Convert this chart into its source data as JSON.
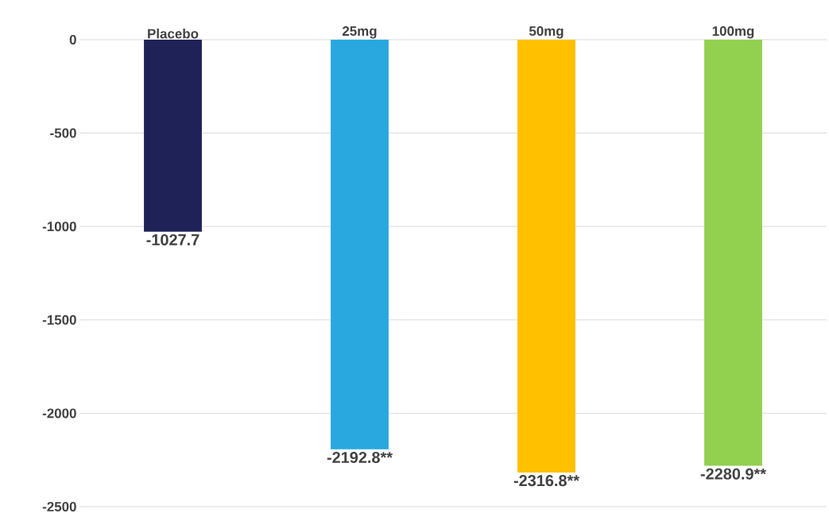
{
  "chart_data": {
    "type": "bar",
    "categories": [
      "Placebo",
      "25mg",
      "50mg",
      "100mg"
    ],
    "values": [
      -1027.7,
      -2192.8,
      -2316.8,
      -2280.9
    ],
    "value_labels": [
      "-1027.7",
      "-2192.8**",
      "-2316.8**",
      "-2280.9**"
    ],
    "colors": [
      "#1f2257",
      "#29a8e0",
      "#ffc000",
      "#92d050"
    ],
    "ylim": [
      -2500,
      0
    ],
    "yticks": [
      0,
      -500,
      -1000,
      -1500,
      -2000,
      -2500
    ],
    "grid": "y"
  }
}
